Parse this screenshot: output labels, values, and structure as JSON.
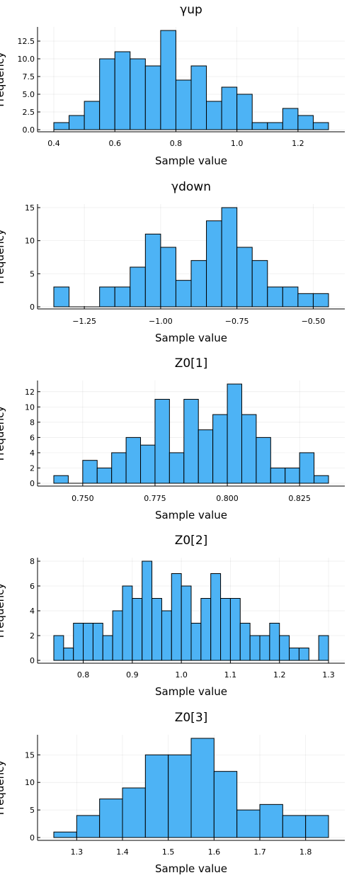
{
  "chart_data": [
    {
      "type": "bar",
      "title": "γup",
      "xlabel": "Sample value",
      "ylabel": "Frequency",
      "grid": true,
      "legend": "none",
      "bar_color": "#4DB3F5",
      "bin_edges": [
        0.4,
        0.45,
        0.5,
        0.55,
        0.6,
        0.65,
        0.7,
        0.75,
        0.8,
        0.85,
        0.9,
        0.95,
        1.0,
        1.05,
        1.1,
        1.15,
        1.2,
        1.25,
        1.3
      ],
      "values": [
        1,
        2,
        4,
        10,
        11,
        10,
        9,
        14,
        7,
        9,
        4,
        6,
        5,
        1,
        1,
        3,
        2,
        1
      ],
      "xlim": [
        0.4,
        1.3
      ],
      "ylim": [
        0,
        14
      ],
      "xticks": [
        0.4,
        0.6,
        0.8,
        1.0,
        1.2
      ],
      "xtick_labels": [
        "0.4",
        "0.6",
        "0.8",
        "1.0",
        "1.2"
      ],
      "yticks": [
        0,
        2.5,
        5,
        7.5,
        10,
        12.5
      ],
      "ytick_labels": [
        "0.0",
        "2.5",
        "5.0",
        "7.5",
        "10.0",
        "12.5"
      ]
    },
    {
      "type": "bar",
      "title": "γdown",
      "xlabel": "Sample value",
      "ylabel": "Frequency",
      "grid": true,
      "legend": "none",
      "bar_color": "#4DB3F5",
      "bin_edges": [
        -1.35,
        -1.3,
        -1.25,
        -1.2,
        -1.15,
        -1.1,
        -1.05,
        -1.0,
        -0.95,
        -0.9,
        -0.85,
        -0.8,
        -0.75,
        -0.7,
        -0.65,
        -0.6,
        -0.55,
        -0.5,
        -0.45
      ],
      "values": [
        3,
        0,
        0,
        3,
        3,
        6,
        11,
        9,
        4,
        7,
        13,
        15,
        9,
        7,
        3,
        3,
        2,
        2
      ],
      "xlim": [
        -1.35,
        -0.45
      ],
      "ylim": [
        0,
        15
      ],
      "xticks": [
        -1.25,
        -1.0,
        -0.75,
        -0.5
      ],
      "xtick_labels": [
        "−1.25",
        "−1.00",
        "−0.75",
        "−0.50"
      ],
      "yticks": [
        0,
        5,
        10,
        15
      ],
      "ytick_labels": [
        "0",
        "5",
        "10",
        "15"
      ]
    },
    {
      "type": "bar",
      "title": "Z0[1]",
      "xlabel": "Sample value",
      "ylabel": "Frequency",
      "grid": true,
      "legend": "none",
      "bar_color": "#4DB3F5",
      "bin_edges": [
        0.74,
        0.745,
        0.75,
        0.755,
        0.76,
        0.765,
        0.77,
        0.775,
        0.78,
        0.785,
        0.79,
        0.795,
        0.8,
        0.805,
        0.81,
        0.815,
        0.82,
        0.825,
        0.83,
        0.835
      ],
      "values": [
        1,
        0,
        3,
        2,
        4,
        6,
        5,
        11,
        4,
        11,
        7,
        9,
        13,
        9,
        6,
        2,
        2,
        4,
        1
      ],
      "xlim": [
        0.74,
        0.835
      ],
      "ylim": [
        0,
        13
      ],
      "xticks": [
        0.75,
        0.775,
        0.8,
        0.825
      ],
      "xtick_labels": [
        "0.750",
        "0.775",
        "0.800",
        "0.825"
      ],
      "yticks": [
        0,
        2,
        4,
        6,
        8,
        10,
        12
      ],
      "ytick_labels": [
        "0",
        "2",
        "4",
        "6",
        "8",
        "10",
        "12"
      ]
    },
    {
      "type": "bar",
      "title": "Z0[2]",
      "xlabel": "Sample value",
      "ylabel": "Frequency",
      "grid": true,
      "legend": "none",
      "bar_color": "#4DB3F5",
      "bin_edges": [
        0.74,
        0.76,
        0.78,
        0.8,
        0.82,
        0.84,
        0.86,
        0.88,
        0.9,
        0.92,
        0.94,
        0.96,
        0.98,
        1.0,
        1.02,
        1.04,
        1.06,
        1.08,
        1.1,
        1.12,
        1.14,
        1.16,
        1.18,
        1.2,
        1.22,
        1.24,
        1.26,
        1.28,
        1.3
      ],
      "values": [
        2,
        1,
        3,
        3,
        3,
        2,
        4,
        6,
        5,
        8,
        5,
        4,
        7,
        6,
        3,
        5,
        7,
        5,
        5,
        3,
        2,
        2,
        3,
        2,
        1,
        1,
        0,
        2
      ],
      "xlim": [
        0.74,
        1.3
      ],
      "ylim": [
        0,
        8
      ],
      "xticks": [
        0.8,
        0.9,
        1.0,
        1.1,
        1.2,
        1.3
      ],
      "xtick_labels": [
        "0.8",
        "0.9",
        "1.0",
        "1.1",
        "1.2",
        "1.3"
      ],
      "yticks": [
        0,
        2,
        4,
        6,
        8
      ],
      "ytick_labels": [
        "0",
        "2",
        "4",
        "6",
        "8"
      ]
    },
    {
      "type": "bar",
      "title": "Z0[3]",
      "xlabel": "Sample value",
      "ylabel": "Frequency",
      "grid": true,
      "legend": "none",
      "bar_color": "#4DB3F5",
      "bin_edges": [
        1.25,
        1.3,
        1.35,
        1.4,
        1.45,
        1.5,
        1.55,
        1.6,
        1.65,
        1.7,
        1.75,
        1.8,
        1.85
      ],
      "values": [
        1,
        4,
        7,
        9,
        15,
        15,
        18,
        12,
        5,
        6,
        4,
        4
      ],
      "xlim": [
        1.25,
        1.85
      ],
      "ylim": [
        0,
        18
      ],
      "xticks": [
        1.3,
        1.4,
        1.5,
        1.6,
        1.7,
        1.8
      ],
      "xtick_labels": [
        "1.3",
        "1.4",
        "1.5",
        "1.6",
        "1.7",
        "1.8"
      ],
      "yticks": [
        0,
        5,
        10,
        15
      ],
      "ytick_labels": [
        "0",
        "5",
        "10",
        "15"
      ]
    }
  ]
}
